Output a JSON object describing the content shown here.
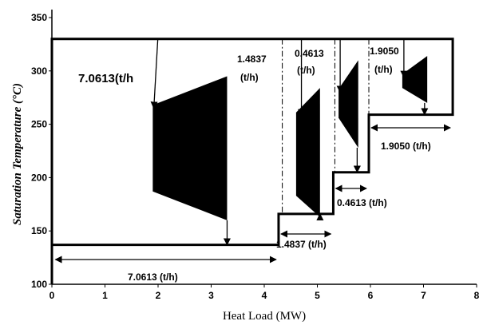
{
  "chart_data": {
    "type": "line",
    "xlabel": "Heat Load (MW)",
    "ylabel": "Saturation Temperature (°C)",
    "xlim": [
      0,
      8
    ],
    "ylim": [
      100,
      350
    ],
    "x_ticks": [
      "0",
      "1",
      "2",
      "3",
      "4",
      "5",
      "6",
      "7",
      "8"
    ],
    "y_ticks": [
      "100",
      "150",
      "200",
      "250",
      "300",
      "350"
    ],
    "grid": false,
    "series": [
      {
        "values_xy": [
          [
            0,
            100
          ],
          [
            0,
            137
          ],
          [
            4.27,
            137
          ],
          [
            4.27,
            166
          ],
          [
            5.3,
            166
          ],
          [
            5.3,
            205
          ],
          [
            5.97,
            205
          ],
          [
            5.97,
            259
          ],
          [
            7.55,
            259
          ],
          [
            7.55,
            330
          ],
          [
            0,
            330
          ],
          [
            0,
            137
          ]
        ]
      }
    ],
    "turbines": [
      {
        "x": [
          1.9,
          3.3
        ],
        "y_in": [
          268,
          295
        ],
        "y_out": [
          187,
          160
        ],
        "entry_x": 1.92,
        "exit_x": 3.3
      },
      {
        "x": [
          4.6,
          5.05
        ],
        "y_in": [
          261,
          284
        ],
        "y_out": [
          183,
          163
        ],
        "entry_x": 4.7,
        "exit_x": 5.05
      },
      {
        "x": [
          5.4,
          5.77
        ],
        "y_in": [
          283,
          310
        ],
        "y_out": [
          256,
          228
        ],
        "entry_x": 5.43,
        "exit_x": 5.75
      },
      {
        "x": [
          6.6,
          7.07
        ],
        "y_in": [
          297,
          314
        ],
        "y_out": [
          284,
          270
        ],
        "entry_x": 6.63,
        "exit_x": 7.02
      }
    ],
    "annotations": [
      {
        "text": "7.0613(t/h",
        "class": "big"
      },
      {
        "text": "1.4837"
      },
      {
        "text": "(t/h)"
      },
      {
        "text": "0.4613"
      },
      {
        "text": "(t/h)"
      },
      {
        "text": "1.9050"
      },
      {
        "text": "(t/h)"
      },
      {
        "text": "1.9050  (t/h)"
      },
      {
        "text": "0.4613  (t/h)"
      },
      {
        "text": "1.4837 (t/h)"
      },
      {
        "text": "7.0613  (t/h)"
      }
    ]
  }
}
